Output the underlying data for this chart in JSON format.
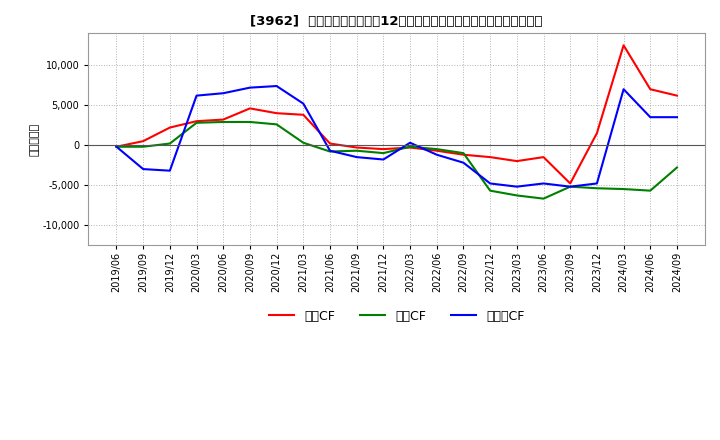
{
  "title": "[3962]  キャッシュフローの12か月移動合計の対前年同期増減額の推移",
  "ylabel": "（百万円）",
  "ylim": [
    -12500,
    14000
  ],
  "yticks": [
    -10000,
    -5000,
    0,
    5000,
    10000
  ],
  "dates": [
    "2019/06",
    "2019/09",
    "2019/12",
    "2020/03",
    "2020/06",
    "2020/09",
    "2020/12",
    "2021/03",
    "2021/06",
    "2021/09",
    "2021/12",
    "2022/03",
    "2022/06",
    "2022/09",
    "2022/12",
    "2023/03",
    "2023/06",
    "2023/09",
    "2023/12",
    "2024/03",
    "2024/06",
    "2024/09"
  ],
  "operating_cf": [
    -200,
    500,
    2200,
    3000,
    3200,
    4600,
    4000,
    3800,
    200,
    -300,
    -500,
    -300,
    -700,
    -1200,
    -1500,
    -2000,
    -1500,
    -4800,
    1500,
    12500,
    7000,
    6200
  ],
  "investing_cf": [
    -200,
    -200,
    200,
    2800,
    2900,
    2900,
    2600,
    300,
    -800,
    -700,
    -1000,
    -200,
    -500,
    -1000,
    -5700,
    -6300,
    -6700,
    -5200,
    -5400,
    -5500,
    -5700,
    -2800
  ],
  "free_cf": [
    -200,
    -3000,
    -3200,
    6200,
    6500,
    7200,
    7400,
    5200,
    -700,
    -1500,
    -1800,
    300,
    -1200,
    -2200,
    -4800,
    -5200,
    -4800,
    -5200,
    -4800,
    7000,
    3500,
    3500
  ],
  "operating_color": "#FF0000",
  "investing_color": "#008000",
  "free_color": "#0000FF",
  "legend_labels": [
    "営業CF",
    "投資CF",
    "フリーCF"
  ],
  "background_color": "#FFFFFF",
  "grid_color": "#AAAAAA"
}
